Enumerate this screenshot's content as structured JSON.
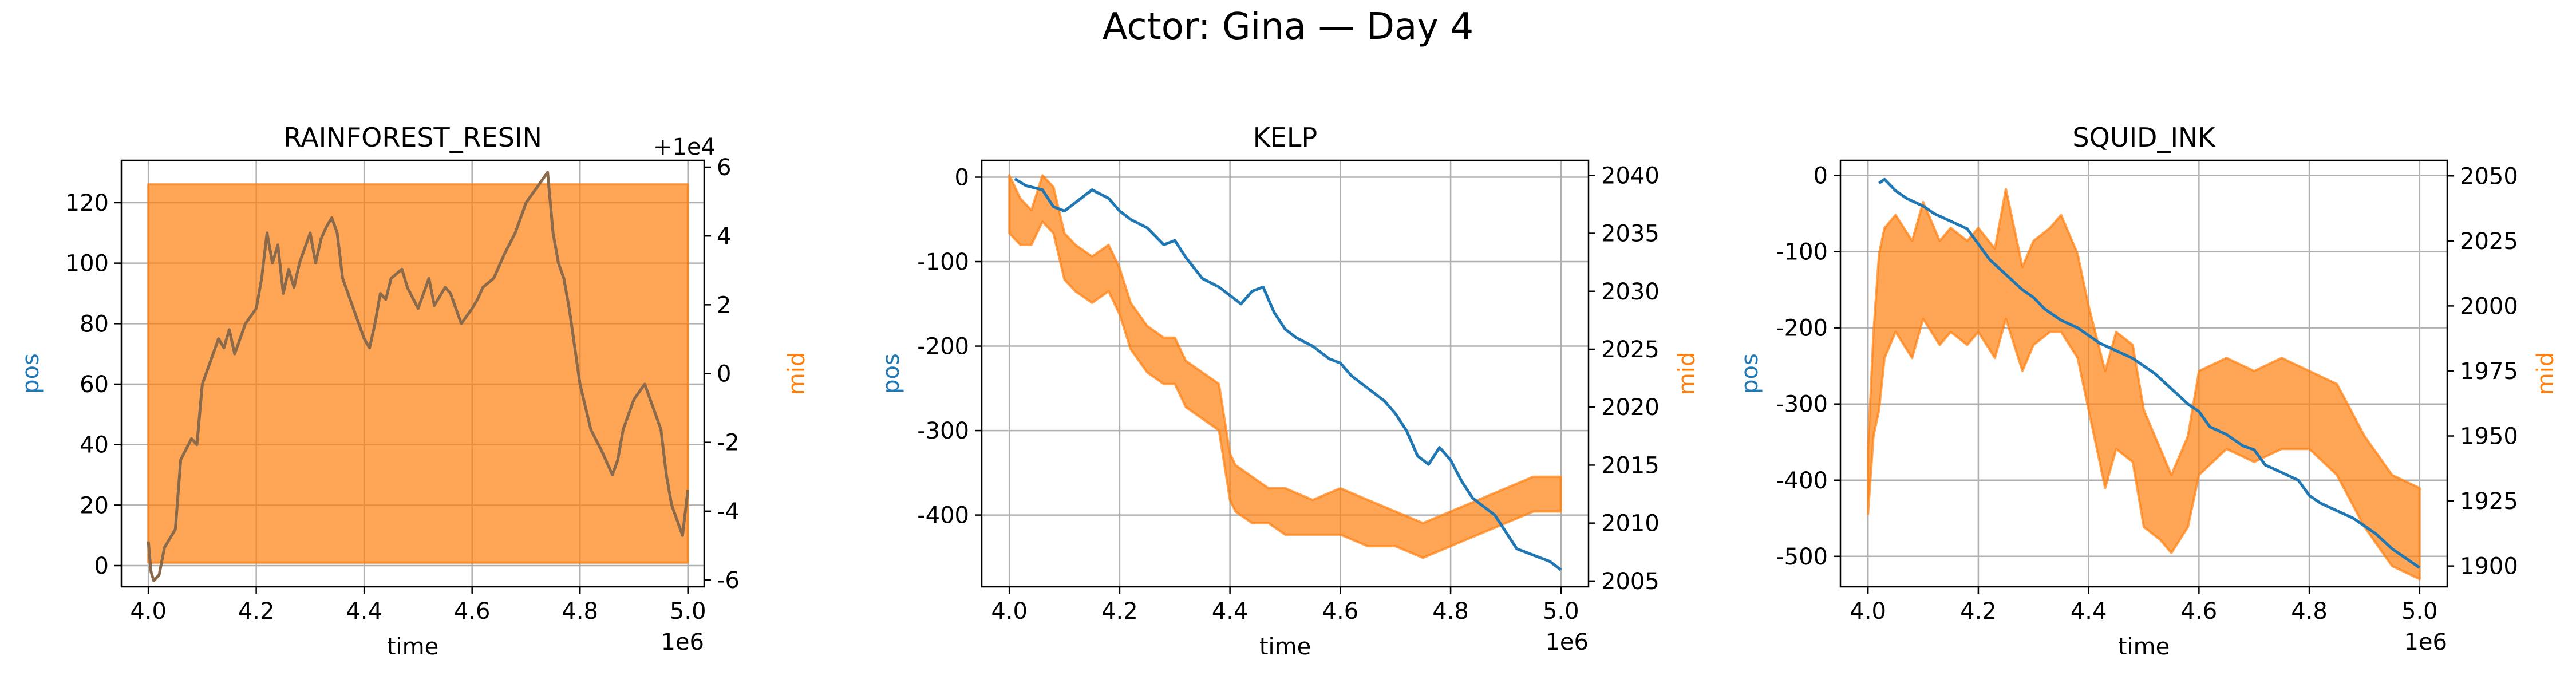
{
  "figure": {
    "title": "Actor: Gina — Day 4"
  },
  "colors": {
    "pos": "#1f77b4",
    "mid": "#ff7f0e",
    "grid": "#b0b0b0",
    "axis": "#000000"
  },
  "chart_data": [
    {
      "type": "line",
      "title": "RAINFOREST_RESIN",
      "xlabel": "time",
      "ylabel_left": "pos",
      "ylabel_right": "mid",
      "x_multiplier": "1e6",
      "right_offset": "+1e4",
      "xlim": [
        3.95,
        5.03
      ],
      "xticks": [
        4.0,
        4.2,
        4.4,
        4.6,
        4.8,
        5.0
      ],
      "xtick_labels": [
        "4.0",
        "4.2",
        "4.4",
        "4.6",
        "4.8",
        "5.0"
      ],
      "ylim_left": [
        -7,
        134
      ],
      "yticks_left": [
        0,
        20,
        40,
        60,
        80,
        100,
        120
      ],
      "ylim_right": [
        -6.2,
        6.2
      ],
      "yticks_right": [
        -6,
        -4,
        -2,
        0,
        2,
        4,
        6
      ],
      "grid": true,
      "series": [
        {
          "name": "pos",
          "axis": "left",
          "style": "line",
          "x": [
            4.0,
            4.005,
            4.01,
            4.02,
            4.03,
            4.05,
            4.06,
            4.08,
            4.09,
            4.1,
            4.12,
            4.13,
            4.14,
            4.15,
            4.16,
            4.18,
            4.2,
            4.21,
            4.22,
            4.23,
            4.24,
            4.25,
            4.26,
            4.27,
            4.28,
            4.29,
            4.3,
            4.31,
            4.32,
            4.33,
            4.34,
            4.35,
            4.36,
            4.38,
            4.4,
            4.41,
            4.42,
            4.43,
            4.44,
            4.45,
            4.47,
            4.48,
            4.5,
            4.51,
            4.52,
            4.53,
            4.55,
            4.56,
            4.58,
            4.6,
            4.61,
            4.62,
            4.64,
            4.66,
            4.68,
            4.7,
            4.72,
            4.74,
            4.75,
            4.76,
            4.77,
            4.78,
            4.8,
            4.82,
            4.84,
            4.86,
            4.87,
            4.88,
            4.9,
            4.92,
            4.93,
            4.94,
            4.95,
            4.96,
            4.97,
            4.98,
            4.99,
            5.0
          ],
          "y": [
            8,
            -2,
            -5,
            -3,
            6,
            12,
            35,
            42,
            40,
            60,
            70,
            75,
            72,
            78,
            70,
            80,
            85,
            95,
            110,
            100,
            106,
            90,
            98,
            92,
            100,
            105,
            110,
            100,
            108,
            112,
            115,
            110,
            95,
            85,
            75,
            72,
            80,
            90,
            88,
            95,
            98,
            92,
            85,
            90,
            95,
            86,
            92,
            90,
            80,
            85,
            88,
            92,
            95,
            103,
            110,
            120,
            125,
            130,
            110,
            100,
            95,
            85,
            60,
            45,
            38,
            30,
            35,
            45,
            55,
            60,
            55,
            50,
            45,
            30,
            20,
            15,
            10,
            25
          ]
        },
        {
          "name": "mid",
          "axis": "right",
          "style": "band",
          "x": [
            4.0,
            5.0
          ],
          "upper": [
            5.5,
            5.5
          ],
          "lower": [
            -5.5,
            -5.5
          ]
        }
      ]
    },
    {
      "type": "line",
      "title": "KELP",
      "xlabel": "time",
      "ylabel_left": "pos",
      "ylabel_right": "mid",
      "x_multiplier": "1e6",
      "xlim": [
        3.95,
        5.05
      ],
      "xticks": [
        4.0,
        4.2,
        4.4,
        4.6,
        4.8,
        5.0
      ],
      "xtick_labels": [
        "4.0",
        "4.2",
        "4.4",
        "4.6",
        "4.8",
        "5.0"
      ],
      "ylim_left": [
        -485,
        20
      ],
      "yticks_left": [
        -400,
        -300,
        -200,
        -100,
        0
      ],
      "ylim_right": [
        2004.5,
        2041.3
      ],
      "yticks_right": [
        2005,
        2010,
        2015,
        2020,
        2025,
        2030,
        2035,
        2040
      ],
      "grid": true,
      "series": [
        {
          "name": "pos",
          "axis": "left",
          "style": "line",
          "x": [
            4.01,
            4.03,
            4.06,
            4.08,
            4.1,
            4.12,
            4.15,
            4.18,
            4.2,
            4.22,
            4.25,
            4.28,
            4.3,
            4.32,
            4.35,
            4.38,
            4.4,
            4.42,
            4.44,
            4.46,
            4.48,
            4.5,
            4.52,
            4.55,
            4.58,
            4.6,
            4.62,
            4.65,
            4.68,
            4.7,
            4.72,
            4.74,
            4.76,
            4.78,
            4.8,
            4.82,
            4.84,
            4.86,
            4.88,
            4.9,
            4.92,
            4.94,
            4.96,
            4.98,
            5.0
          ],
          "y": [
            -2,
            -10,
            -15,
            -35,
            -40,
            -30,
            -15,
            -25,
            -40,
            -50,
            -60,
            -80,
            -75,
            -95,
            -120,
            -130,
            -140,
            -150,
            -135,
            -130,
            -160,
            -180,
            -190,
            -200,
            -215,
            -220,
            -235,
            -250,
            -265,
            -280,
            -300,
            -330,
            -340,
            -320,
            -335,
            -360,
            -380,
            -390,
            -400,
            -420,
            -440,
            -445,
            -450,
            -455,
            -465
          ]
        },
        {
          "name": "mid",
          "axis": "right",
          "style": "band",
          "x": [
            4.0,
            4.02,
            4.04,
            4.06,
            4.08,
            4.1,
            4.12,
            4.15,
            4.18,
            4.2,
            4.22,
            4.25,
            4.28,
            4.3,
            4.32,
            4.35,
            4.38,
            4.4,
            4.41,
            4.44,
            4.47,
            4.5,
            4.55,
            4.6,
            4.65,
            4.7,
            4.75,
            4.8,
            4.85,
            4.9,
            4.95,
            5.0
          ],
          "upper": [
            2040,
            2038,
            2037,
            2040,
            2039,
            2035,
            2034,
            2033,
            2034,
            2032,
            2029,
            2027,
            2026,
            2026,
            2024,
            2023,
            2022,
            2016,
            2015,
            2014,
            2013,
            2013,
            2012,
            2013,
            2012,
            2011,
            2010,
            2011,
            2012,
            2013,
            2014,
            2014
          ],
          "lower": [
            2035,
            2034,
            2034,
            2036,
            2035,
            2031,
            2030,
            2029,
            2030,
            2028,
            2025,
            2023,
            2022,
            2022,
            2020,
            2019,
            2018,
            2012,
            2011,
            2010,
            2010,
            2009,
            2009,
            2009,
            2008,
            2008,
            2007,
            2008,
            2009,
            2010,
            2011,
            2011
          ]
        }
      ]
    },
    {
      "type": "line",
      "title": "SQUID_INK",
      "xlabel": "time",
      "ylabel_left": "pos",
      "ylabel_right": "mid",
      "x_multiplier": "1e6",
      "xlim": [
        3.95,
        5.05
      ],
      "xticks": [
        4.0,
        4.2,
        4.4,
        4.6,
        4.8,
        5.0
      ],
      "xtick_labels": [
        "4.0",
        "4.2",
        "4.4",
        "4.6",
        "4.8",
        "5.0"
      ],
      "ylim_left": [
        -540,
        20
      ],
      "yticks_left": [
        -500,
        -400,
        -300,
        -200,
        -100,
        0
      ],
      "ylim_right": [
        1892,
        2056
      ],
      "yticks_right": [
        1900,
        1925,
        1950,
        1975,
        2000,
        2025,
        2050
      ],
      "grid": true,
      "series": [
        {
          "name": "pos",
          "axis": "left",
          "style": "line",
          "x": [
            4.02,
            4.03,
            4.05,
            4.07,
            4.1,
            4.12,
            4.15,
            4.18,
            4.2,
            4.22,
            4.25,
            4.28,
            4.3,
            4.32,
            4.35,
            4.38,
            4.4,
            4.42,
            4.45,
            4.48,
            4.5,
            4.52,
            4.55,
            4.58,
            4.6,
            4.62,
            4.65,
            4.68,
            4.7,
            4.72,
            4.75,
            4.78,
            4.8,
            4.82,
            4.85,
            4.88,
            4.9,
            4.92,
            4.95,
            4.98,
            5.0
          ],
          "y": [
            -10,
            -5,
            -20,
            -30,
            -40,
            -50,
            -60,
            -70,
            -90,
            -110,
            -130,
            -150,
            -160,
            -175,
            -190,
            -200,
            -210,
            -220,
            -230,
            -240,
            -250,
            -260,
            -280,
            -300,
            -310,
            -330,
            -340,
            -355,
            -360,
            -380,
            -390,
            -400,
            -420,
            -430,
            -440,
            -450,
            -460,
            -470,
            -490,
            -505,
            -515
          ]
        },
        {
          "name": "mid",
          "axis": "right",
          "style": "band",
          "x": [
            4.0,
            4.01,
            4.02,
            4.03,
            4.05,
            4.08,
            4.1,
            4.13,
            4.15,
            4.18,
            4.2,
            4.23,
            4.25,
            4.28,
            4.3,
            4.33,
            4.35,
            4.38,
            4.4,
            4.43,
            4.45,
            4.48,
            4.5,
            4.53,
            4.55,
            4.58,
            4.6,
            4.65,
            4.7,
            4.75,
            4.8,
            4.85,
            4.9,
            4.95,
            5.0
          ],
          "upper": [
            1945,
            1990,
            2020,
            2030,
            2035,
            2025,
            2040,
            2025,
            2030,
            2025,
            2030,
            2022,
            2045,
            2015,
            2025,
            2030,
            2035,
            2020,
            2000,
            1975,
            1990,
            1985,
            1960,
            1945,
            1935,
            1950,
            1975,
            1980,
            1975,
            1980,
            1975,
            1970,
            1950,
            1935,
            1930
          ],
          "lower": [
            1920,
            1950,
            1960,
            1980,
            1990,
            1980,
            1995,
            1985,
            1990,
            1985,
            1990,
            1980,
            1995,
            1975,
            1985,
            1990,
            1990,
            1980,
            1960,
            1930,
            1945,
            1940,
            1915,
            1910,
            1905,
            1915,
            1935,
            1945,
            1940,
            1945,
            1945,
            1935,
            1915,
            1900,
            1895
          ]
        }
      ]
    }
  ]
}
